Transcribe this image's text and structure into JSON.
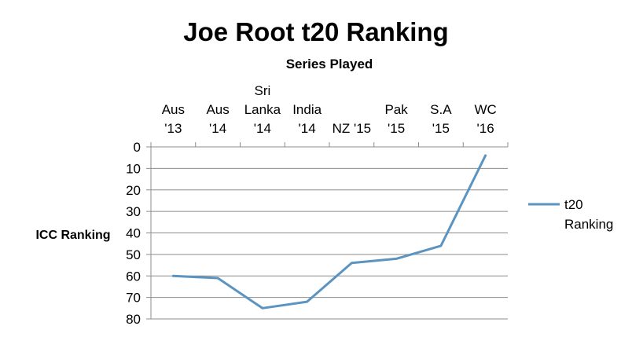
{
  "chart_data": {
    "type": "line",
    "title": "Joe Root t20 Ranking",
    "xlabel": "Series Played",
    "ylabel": "ICC Ranking",
    "categories": [
      [
        "Aus",
        "'13"
      ],
      [
        "Aus",
        "'14"
      ],
      [
        "Sri",
        "Lanka",
        "'14"
      ],
      [
        "India",
        "'14"
      ],
      [
        "NZ '15"
      ],
      [
        "Pak",
        "'15"
      ],
      [
        "S.A",
        "'15"
      ],
      [
        "WC",
        "'16"
      ]
    ],
    "series": [
      {
        "name": [
          "t20",
          "Ranking"
        ],
        "values": [
          60,
          61,
          75,
          72,
          54,
          52,
          46,
          4
        ],
        "color": "#5b93c1"
      }
    ],
    "yticks": [
      "0",
      "10",
      "20",
      "30",
      "40",
      "50",
      "60",
      "70",
      "80"
    ],
    "ylim": [
      0,
      80
    ],
    "y_reversed": true,
    "x_axis_position": "top",
    "grid": true,
    "legend": "right"
  }
}
